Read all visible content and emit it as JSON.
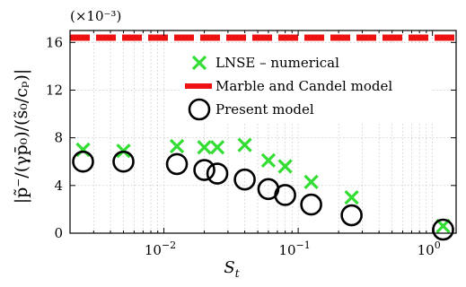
{
  "chart_data": {
    "type": "scatter",
    "x_scale": "log",
    "xlim": [
      0.002,
      1.5
    ],
    "ylim": [
      0,
      17
    ],
    "y_multiplier": "(×10⁻³)",
    "xlabel": "S",
    "xlabel_sub": "t",
    "ylabel": "|p̃⁻/(γp̄₀)/(s̃₀/cₚ)|",
    "yticks": [
      0,
      4,
      8,
      12,
      16
    ],
    "yticklabels": [
      "0",
      "4",
      "8",
      "12",
      "16"
    ],
    "xticks": [
      0.01,
      0.1,
      1
    ],
    "xticklabels": [
      {
        "base": "10",
        "exp": "−2"
      },
      {
        "base": "10",
        "exp": "−1"
      },
      {
        "base": "10",
        "exp": "0"
      }
    ],
    "grid": true,
    "legend_position": "top-center",
    "series": [
      {
        "name": "LNSE – numerical",
        "marker": "x",
        "color": "#33dd33",
        "x": [
          0.0025,
          0.005,
          0.0125,
          0.02,
          0.025,
          0.04,
          0.06,
          0.08,
          0.125,
          0.25,
          1.2
        ],
        "y": [
          7.0,
          6.9,
          7.3,
          7.2,
          7.2,
          7.4,
          6.1,
          5.6,
          4.3,
          3.0,
          0.6
        ]
      },
      {
        "name": "Marble and Candel model",
        "marker": "dashed-line",
        "color": "#ee1111",
        "value": 16.4
      },
      {
        "name": "Present model",
        "marker": "circle",
        "color": "#000000",
        "x": [
          0.0025,
          0.005,
          0.0125,
          0.02,
          0.025,
          0.04,
          0.06,
          0.08,
          0.125,
          0.25,
          1.2
        ],
        "y": [
          6.0,
          6.0,
          5.8,
          5.3,
          5.0,
          4.5,
          3.7,
          3.2,
          2.4,
          1.5,
          0.3
        ]
      }
    ]
  }
}
